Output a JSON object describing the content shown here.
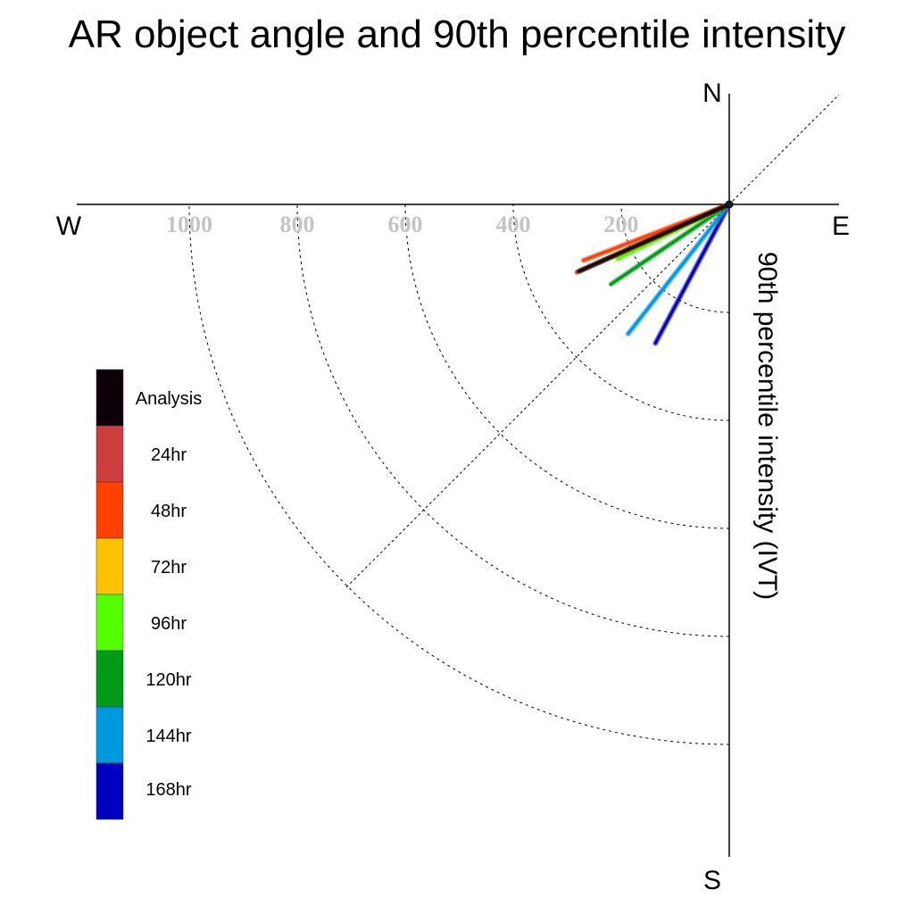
{
  "chart_data": {
    "type": "polar-vector",
    "title": "AR object angle and 90th percentile intensity",
    "axis_label": "90th percentile intensity (IVT)",
    "compass": {
      "north": "N",
      "south": "S",
      "east": "E",
      "west": "W"
    },
    "radial_ticks": [
      200,
      400,
      600,
      800,
      1000
    ],
    "radial_tick_labels": [
      "200",
      "400",
      "600",
      "800",
      "1000"
    ],
    "rmax": 1200,
    "grid": true,
    "legend_position": "left",
    "series": [
      {
        "name": "168hr",
        "color": "#0000c0",
        "angle_deg": 208,
        "value": 291
      },
      {
        "name": "144hr",
        "color": "#0099e0",
        "angle_deg": 218,
        "value": 304
      },
      {
        "name": "120hr",
        "color": "#009a15",
        "angle_deg": 236,
        "value": 264
      },
      {
        "name": "96hr",
        "color": "#55ff00",
        "angle_deg": 244,
        "value": 230
      },
      {
        "name": "72hr",
        "color": "#ffc200",
        "angle_deg": 246,
        "value": 264
      },
      {
        "name": "48hr",
        "color": "#ff4000",
        "angle_deg": 249,
        "value": 289
      },
      {
        "name": "24hr",
        "color": "#cc3d3d",
        "angle_deg": 246,
        "value": 309
      },
      {
        "name": "Analysis",
        "color": "#0d0008",
        "angle_deg": 246,
        "value": 304
      }
    ]
  }
}
